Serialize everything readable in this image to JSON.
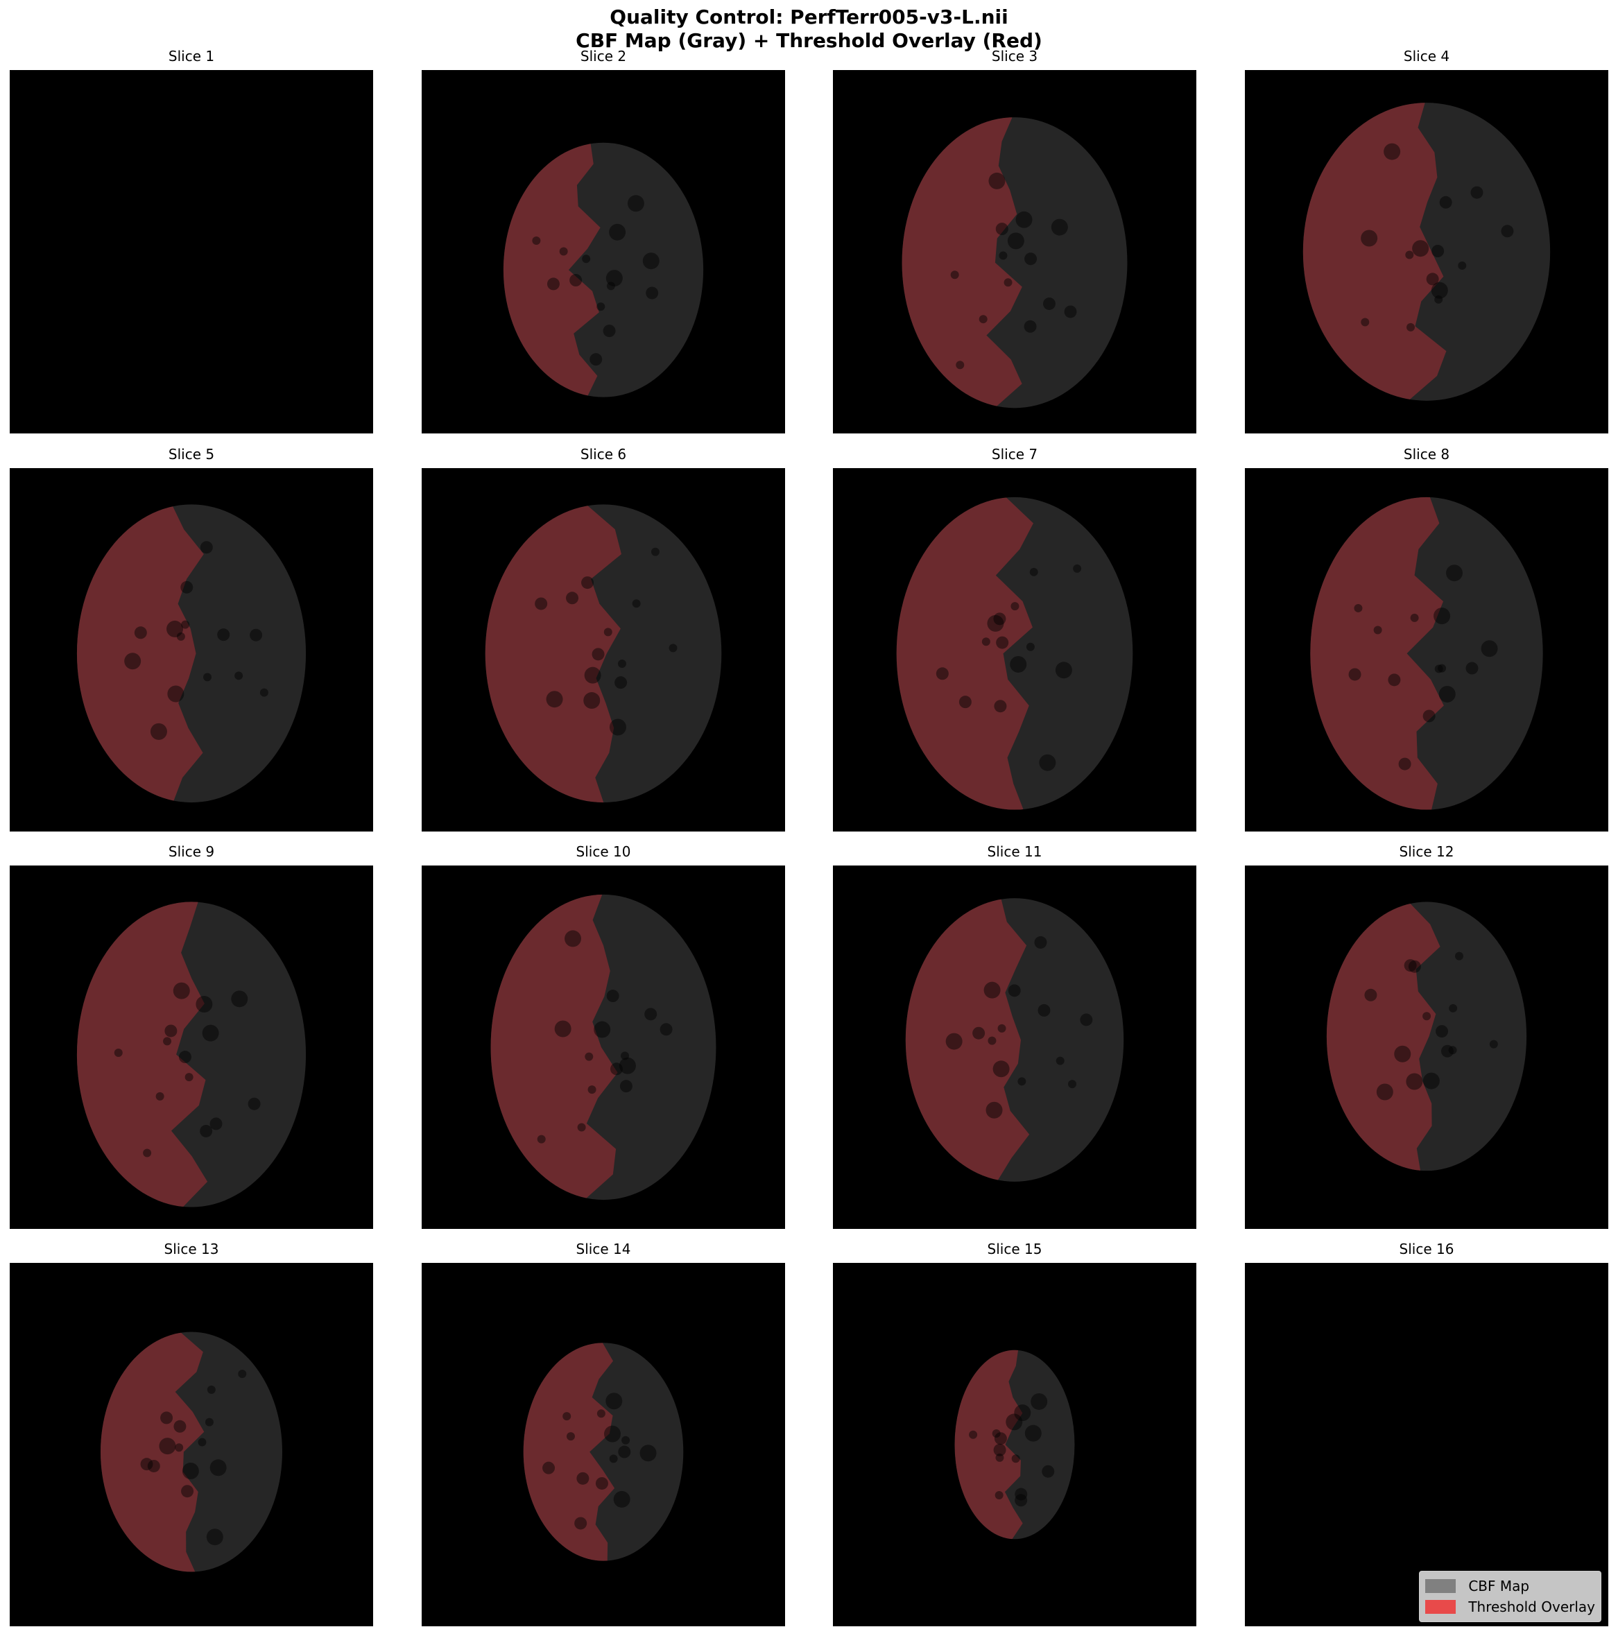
{
  "figure": {
    "title_line1": "Quality Control: PerfTerr005-v3-L.nii",
    "title_line2": "CBF Map (Gray) + Threshold Overlay (Red)"
  },
  "slices": [
    {
      "label": "Slice 1",
      "brain": null
    },
    {
      "label": "Slice 2",
      "brain": {
        "w": 0.55,
        "h": 0.7,
        "cy": 0.55,
        "overlay": 0.35
      }
    },
    {
      "label": "Slice 3",
      "brain": {
        "w": 0.62,
        "h": 0.8,
        "cy": 0.53,
        "overlay": 0.45
      }
    },
    {
      "label": "Slice 4",
      "brain": {
        "w": 0.68,
        "h": 0.82,
        "cy": 0.5,
        "overlay": 0.55
      }
    },
    {
      "label": "Slice 5",
      "brain": {
        "w": 0.63,
        "h": 0.82,
        "cy": 0.51,
        "overlay": 0.5
      }
    },
    {
      "label": "Slice 6",
      "brain": {
        "w": 0.65,
        "h": 0.82,
        "cy": 0.51,
        "overlay": 0.55
      }
    },
    {
      "label": "Slice 7",
      "brain": {
        "w": 0.65,
        "h": 0.86,
        "cy": 0.51,
        "overlay": 0.54
      }
    },
    {
      "label": "Slice 8",
      "brain": {
        "w": 0.64,
        "h": 0.86,
        "cy": 0.51,
        "overlay": 0.53
      }
    },
    {
      "label": "Slice 9",
      "brain": {
        "w": 0.63,
        "h": 0.84,
        "cy": 0.52,
        "overlay": 0.52
      }
    },
    {
      "label": "Slice 10",
      "brain": {
        "w": 0.62,
        "h": 0.84,
        "cy": 0.5,
        "overlay": 0.52
      }
    },
    {
      "label": "Slice 11",
      "brain": {
        "w": 0.6,
        "h": 0.78,
        "cy": 0.48,
        "overlay": 0.52
      }
    },
    {
      "label": "Slice 12",
      "brain": {
        "w": 0.55,
        "h": 0.74,
        "cy": 0.47,
        "overlay": 0.52
      }
    },
    {
      "label": "Slice 13",
      "brain": {
        "w": 0.5,
        "h": 0.66,
        "cy": 0.52,
        "overlay": 0.52
      }
    },
    {
      "label": "Slice 14",
      "brain": {
        "w": 0.44,
        "h": 0.6,
        "cy": 0.52,
        "overlay": 0.52
      }
    },
    {
      "label": "Slice 15",
      "brain": {
        "w": 0.33,
        "h": 0.52,
        "cy": 0.5,
        "overlay": 0.52
      }
    },
    {
      "label": "Slice 16",
      "brain": null
    }
  ],
  "legend": {
    "items": [
      {
        "label": "CBF Map",
        "color": "#808080"
      },
      {
        "label": "Threshold Overlay",
        "color": "#e84a4a"
      }
    ]
  },
  "colors": {
    "panel_bg": "#000000",
    "tissue_gray": "#262626",
    "overlay_red": "#6b2a2e"
  }
}
